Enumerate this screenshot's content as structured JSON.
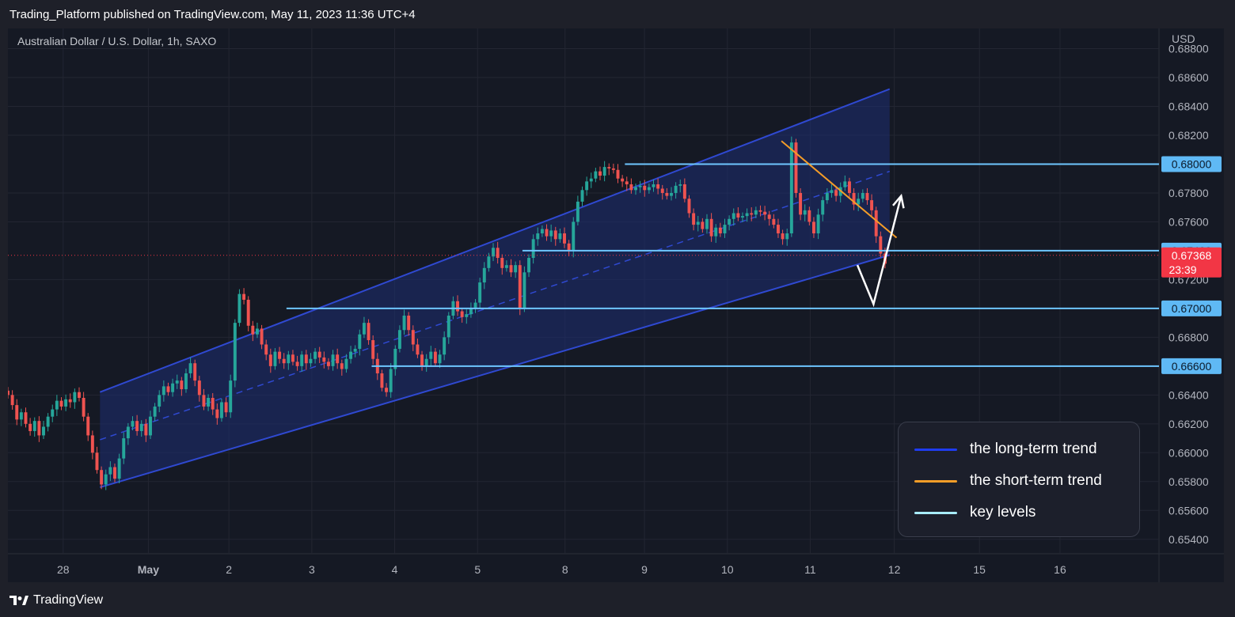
{
  "header": {
    "publisher": "Trading_Platform published on TradingView.com, May 11, 2023 11:36 UTC+4"
  },
  "symbol_label": "Australian Dollar / U.S. Dollar, 1h, SAXO",
  "footer": {
    "brand": "TradingView"
  },
  "colors": {
    "up": "#26a69a",
    "down": "#ef5350",
    "channel": "#2f49d1",
    "channel_fill": "#1e2d72",
    "short_trend": "#f59d28",
    "key_level": "#6ec6ff",
    "price_tag": "#f23645",
    "level_tag": "#5fb9f5"
  },
  "legend": {
    "items": [
      {
        "label": "the long-term trend",
        "color": "#1f3cf0"
      },
      {
        "label": "the short-term trend",
        "color": "#f59d28"
      },
      {
        "label": "key levels",
        "color": "#a8ecff"
      }
    ]
  },
  "chart_data": {
    "type": "candlestick",
    "title": "Australian Dollar / U.S. Dollar, 1h, SAXO",
    "currency": "USD",
    "ylim": [
      0.653,
      0.6894
    ],
    "y_ticks": [
      "0.68800",
      "0.68600",
      "0.68400",
      "0.68200",
      "0.67800",
      "0.67600",
      "0.67200",
      "0.66800",
      "0.66400",
      "0.66200",
      "0.66000",
      "0.65800",
      "0.65600",
      "0.65400"
    ],
    "x_ticks": [
      {
        "label": "28",
        "pos": 0.048
      },
      {
        "label": "May",
        "pos": 0.122
      },
      {
        "label": "2",
        "pos": 0.192
      },
      {
        "label": "3",
        "pos": 0.264
      },
      {
        "label": "4",
        "pos": 0.336
      },
      {
        "label": "5",
        "pos": 0.408
      },
      {
        "label": "8",
        "pos": 0.484
      },
      {
        "label": "9",
        "pos": 0.553
      },
      {
        "label": "10",
        "pos": 0.625
      },
      {
        "label": "11",
        "pos": 0.697
      },
      {
        "label": "12",
        "pos": 0.77
      },
      {
        "label": "15",
        "pos": 0.844
      },
      {
        "label": "16",
        "pos": 0.914
      }
    ],
    "key_levels": [
      {
        "value": 0.68,
        "label": "0.68000",
        "from": 0.536
      },
      {
        "value": 0.674,
        "label": "0.67400",
        "from": 0.447
      },
      {
        "value": 0.67,
        "label": "0.67000",
        "from": 0.242
      },
      {
        "value": 0.666,
        "label": "0.66600",
        "from": 0.316
      }
    ],
    "current_price": {
      "value": 0.67368,
      "label": "0.67368",
      "countdown": "23:39"
    },
    "closes": [
      0.664,
      0.6633,
      0.6623,
      0.6628,
      0.662,
      0.6615,
      0.6622,
      0.6612,
      0.6618,
      0.6625,
      0.663,
      0.6636,
      0.6632,
      0.6637,
      0.6635,
      0.6642,
      0.6638,
      0.6625,
      0.6612,
      0.66,
      0.6588,
      0.6578,
      0.6585,
      0.659,
      0.6582,
      0.6596,
      0.661,
      0.6618,
      0.6622,
      0.6615,
      0.662,
      0.6612,
      0.6625,
      0.6632,
      0.664,
      0.6646,
      0.6642,
      0.6648,
      0.665,
      0.6644,
      0.6655,
      0.6662,
      0.665,
      0.664,
      0.6632,
      0.6638,
      0.663,
      0.6624,
      0.6635,
      0.6628,
      0.665,
      0.669,
      0.671,
      0.6706,
      0.6688,
      0.6682,
      0.6686,
      0.6675,
      0.6668,
      0.666,
      0.667,
      0.6665,
      0.6662,
      0.6668,
      0.6663,
      0.666,
      0.6668,
      0.6662,
      0.6665,
      0.667,
      0.6666,
      0.6663,
      0.666,
      0.6668,
      0.6662,
      0.6658,
      0.6665,
      0.667,
      0.6672,
      0.6682,
      0.669,
      0.6678,
      0.6665,
      0.6655,
      0.6645,
      0.6642,
      0.6658,
      0.6672,
      0.6685,
      0.6695,
      0.6685,
      0.6675,
      0.6668,
      0.666,
      0.6665,
      0.667,
      0.6662,
      0.6668,
      0.668,
      0.6695,
      0.6705,
      0.6698,
      0.6694,
      0.6696,
      0.67,
      0.6704,
      0.6718,
      0.6728,
      0.6736,
      0.6742,
      0.6735,
      0.6728,
      0.673,
      0.6725,
      0.673,
      0.67,
      0.6725,
      0.6735,
      0.6748,
      0.6752,
      0.6755,
      0.675,
      0.6754,
      0.6748,
      0.6752,
      0.6745,
      0.674,
      0.676,
      0.6774,
      0.6782,
      0.6788,
      0.679,
      0.6795,
      0.6792,
      0.6798,
      0.6797,
      0.6796,
      0.679,
      0.6788,
      0.6786,
      0.6782,
      0.6784,
      0.6785,
      0.6782,
      0.6784,
      0.6786,
      0.6783,
      0.678,
      0.6778,
      0.678,
      0.6785,
      0.6786,
      0.6776,
      0.6766,
      0.6758,
      0.676,
      0.6755,
      0.6762,
      0.675,
      0.6756,
      0.6752,
      0.6758,
      0.6762,
      0.6766,
      0.6763,
      0.6764,
      0.6766,
      0.6765,
      0.6768,
      0.6767,
      0.6765,
      0.6762,
      0.6758,
      0.6752,
      0.6748,
      0.6752,
      0.6815,
      0.678,
      0.6765,
      0.6768,
      0.676,
      0.6752,
      0.6765,
      0.6775,
      0.678,
      0.6782,
      0.6778,
      0.6784,
      0.6788,
      0.678,
      0.6772,
      0.6776,
      0.678,
      0.6775,
      0.6768,
      0.675,
      0.6738,
      0.6731
    ],
    "channel": {
      "x_start": 0.08,
      "x_end": 0.766,
      "upper": [
        0.6642,
        0.6852
      ],
      "lower": [
        0.6576,
        0.6737
      ],
      "middle": [
        0.6609,
        0.6795
      ]
    },
    "short_trend": {
      "x": [
        0.672,
        0.772
      ],
      "y": [
        0.6816,
        0.6749
      ]
    },
    "projection": {
      "x": [
        0.738,
        0.752,
        0.776
      ],
      "y": [
        0.673,
        0.6703,
        0.6778
      ]
    }
  }
}
